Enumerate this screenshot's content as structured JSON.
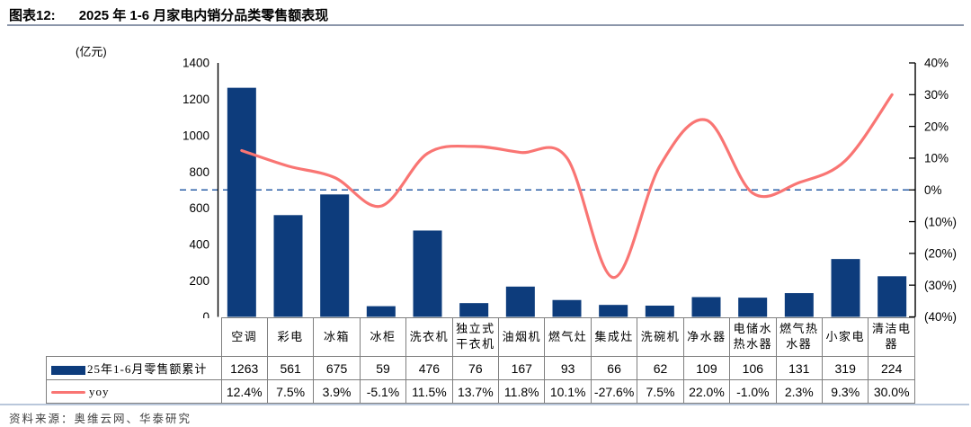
{
  "figure": {
    "label": "图表12:",
    "title": "2025 年 1-6 月家电内销分品类零售额表现",
    "unit": "(亿元)",
    "source": "资料来源：奥维云网、华泰研究"
  },
  "colors": {
    "bar": "#0d3c7c",
    "line": "#f97573",
    "zero_line": "#2b5fa7",
    "axis": "#000000",
    "table_border": "#7f7f7f",
    "title_rule": "#8b96aa",
    "source_rule": "#b9c7db"
  },
  "chart_data": {
    "type": "bar+line combo",
    "categories": [
      "空调",
      "彩电",
      "冰箱",
      "冰柜",
      "洗衣机",
      "独立式干衣机",
      "油烟机",
      "燃气灶",
      "集成灶",
      "洗碗机",
      "净水器",
      "电储水热水器",
      "燃气热水器",
      "小家电",
      "清洁电器"
    ],
    "series": [
      {
        "name": "25年1-6月零售额累计",
        "type": "bar",
        "axis": "left",
        "unit": "亿元",
        "values": [
          1263,
          561,
          675,
          59,
          476,
          76,
          167,
          93,
          66,
          62,
          109,
          106,
          131,
          319,
          224
        ]
      },
      {
        "name": "yoy",
        "type": "line",
        "axis": "right",
        "unit": "%",
        "smooth": true,
        "values": [
          12.4,
          7.5,
          3.9,
          -5.1,
          11.5,
          13.7,
          11.8,
          10.1,
          -27.6,
          7.5,
          22.0,
          -1.0,
          2.3,
          9.3,
          30.0
        ]
      }
    ],
    "left_axis": {
      "min": 0,
      "max": 1400,
      "step": 200,
      "ticks": [
        "1400",
        "1200",
        "1000",
        "800",
        "600",
        "400",
        "200",
        "0"
      ]
    },
    "right_axis": {
      "min": -40,
      "max": 40,
      "step": 10,
      "ticks": [
        "40%",
        "30%",
        "20%",
        "10%",
        "0%",
        "(10%)",
        "(20%)",
        "(30%)",
        "(40%)"
      ]
    },
    "zero_line": {
      "value": 0,
      "style": "dashed"
    },
    "legend_position": "bottom-table",
    "grid": false
  }
}
